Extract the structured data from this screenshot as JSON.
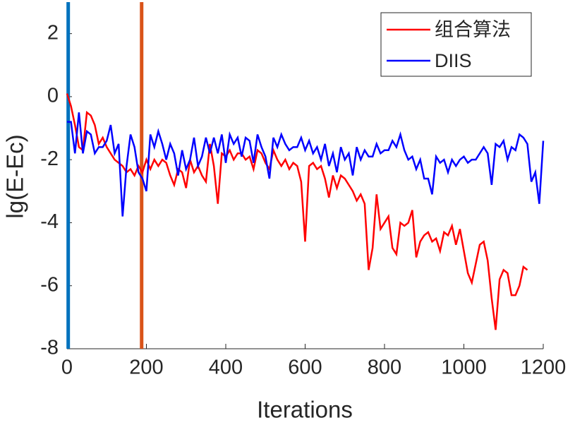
{
  "chart_data": {
    "type": "line",
    "xlabel": "Iterations",
    "ylabel": "lg(E-Ec)",
    "xlim": [
      0,
      1200
    ],
    "ylim": [
      -8,
      3
    ],
    "xticks": [
      0,
      200,
      400,
      600,
      800,
      1000,
      1200
    ],
    "yticks": [
      -8,
      -6,
      -4,
      -2,
      0,
      2
    ],
    "legend": "upper right",
    "reference_lines": [
      {
        "x": 3,
        "color": "#0072bd"
      },
      {
        "x": 188,
        "color": "#d95319"
      }
    ],
    "series": [
      {
        "name": "组合算法",
        "color": "#ff0000",
        "x": [
          0,
          10,
          20,
          30,
          40,
          50,
          60,
          70,
          80,
          90,
          100,
          110,
          120,
          130,
          140,
          150,
          160,
          170,
          180,
          190,
          200,
          210,
          220,
          230,
          240,
          250,
          260,
          270,
          280,
          290,
          300,
          310,
          320,
          330,
          340,
          350,
          360,
          370,
          380,
          390,
          400,
          410,
          420,
          430,
          440,
          450,
          460,
          470,
          480,
          490,
          500,
          510,
          520,
          530,
          540,
          550,
          560,
          570,
          580,
          590,
          600,
          610,
          620,
          630,
          640,
          650,
          660,
          670,
          680,
          690,
          700,
          710,
          720,
          730,
          740,
          750,
          760,
          770,
          780,
          790,
          800,
          810,
          820,
          830,
          840,
          850,
          860,
          870,
          880,
          890,
          900,
          910,
          920,
          930,
          940,
          950,
          960,
          970,
          980,
          990,
          1000,
          1010,
          1020,
          1030,
          1040,
          1050,
          1060,
          1070,
          1080,
          1090,
          1100,
          1110,
          1120,
          1130,
          1140,
          1150,
          1160
        ],
        "values": [
          0.1,
          -0.3,
          -0.9,
          -1.6,
          -1.7,
          -0.5,
          -0.6,
          -0.9,
          -1.5,
          -1.3,
          -1.6,
          -1.8,
          -2.0,
          -2.1,
          -2.2,
          -2.4,
          -2.3,
          -2.5,
          -2.2,
          -2.4,
          -2.0,
          -2.3,
          -2.0,
          -2.2,
          -2.0,
          -2.1,
          -2.5,
          -2.8,
          -2.3,
          -2.4,
          -2.9,
          -2.0,
          -2.4,
          -2.2,
          -2.5,
          -2.7,
          -1.5,
          -2.2,
          -3.4,
          -1.8,
          -1.9,
          -1.7,
          -2.0,
          -1.8,
          -1.8,
          -2.0,
          -1.9,
          -2.3,
          -1.7,
          -1.8,
          -2.1,
          -2.3,
          -1.7,
          -2.0,
          -2.2,
          -2.0,
          -2.3,
          -2.1,
          -2.2,
          -2.7,
          -4.6,
          -2.2,
          -2.1,
          -2.3,
          -2.2,
          -2.6,
          -3.2,
          -2.5,
          -2.9,
          -2.5,
          -2.6,
          -2.8,
          -3.0,
          -3.3,
          -3.1,
          -3.4,
          -5.5,
          -4.8,
          -3.1,
          -4.2,
          -4.0,
          -3.8,
          -4.8,
          -5.0,
          -4.0,
          -4.1,
          -4.0,
          -3.6,
          -5.1,
          -4.6,
          -4.4,
          -4.3,
          -4.6,
          -4.5,
          -4.9,
          -4.3,
          -4.4,
          -4.1,
          -4.7,
          -4.2,
          -4.9,
          -5.6,
          -5.9,
          -5.3,
          -4.7,
          -4.6,
          -5.2,
          -6.4,
          -7.4,
          -5.8,
          -5.5,
          -5.6,
          -6.3,
          -6.3,
          -6.0,
          -5.4,
          -5.5
        ]
      },
      {
        "name": "DIIS",
        "color": "#0000ff",
        "x": [
          0,
          10,
          20,
          30,
          40,
          50,
          60,
          70,
          80,
          90,
          100,
          110,
          120,
          130,
          140,
          150,
          160,
          170,
          180,
          190,
          200,
          210,
          220,
          230,
          240,
          250,
          260,
          270,
          280,
          290,
          300,
          310,
          320,
          330,
          340,
          350,
          360,
          370,
          380,
          390,
          400,
          410,
          420,
          430,
          440,
          450,
          460,
          470,
          480,
          490,
          500,
          510,
          520,
          530,
          540,
          550,
          560,
          570,
          580,
          590,
          600,
          610,
          620,
          630,
          640,
          650,
          660,
          670,
          680,
          690,
          700,
          710,
          720,
          730,
          740,
          750,
          760,
          770,
          780,
          790,
          800,
          810,
          820,
          830,
          840,
          850,
          860,
          870,
          880,
          890,
          900,
          910,
          920,
          930,
          940,
          950,
          960,
          970,
          980,
          990,
          1000,
          1010,
          1020,
          1030,
          1040,
          1050,
          1060,
          1070,
          1080,
          1090,
          1100,
          1110,
          1120,
          1130,
          1140,
          1150,
          1160,
          1170,
          1180,
          1190,
          1200
        ],
        "values": [
          -0.8,
          -0.8,
          -1.8,
          -0.5,
          -1.8,
          -1.1,
          -1.2,
          -1.8,
          -1.6,
          -1.6,
          -1.4,
          -0.9,
          -1.8,
          -1.5,
          -3.8,
          -2.2,
          -1.2,
          -1.6,
          -2.4,
          -2.6,
          -3.0,
          -1.2,
          -1.6,
          -1.1,
          -1.5,
          -2.0,
          -1.5,
          -1.8,
          -2.5,
          -1.7,
          -2.3,
          -2.0,
          -1.3,
          -2.2,
          -1.9,
          -1.3,
          -1.8,
          -1.3,
          -1.8,
          -1.2,
          -2.1,
          -1.2,
          -1.5,
          -1.3,
          -1.9,
          -1.3,
          -1.4,
          -2.1,
          -1.2,
          -1.6,
          -1.9,
          -2.6,
          -1.3,
          -1.6,
          -1.2,
          -1.5,
          -1.7,
          -1.6,
          -1.6,
          -1.3,
          -1.7,
          -1.4,
          -1.8,
          -1.6,
          -2.0,
          -1.5,
          -2.2,
          -1.8,
          -2.4,
          -1.6,
          -2.0,
          -1.8,
          -2.5,
          -1.6,
          -2.0,
          -1.7,
          -1.9,
          -1.9,
          -1.5,
          -1.8,
          -1.7,
          -1.7,
          -1.4,
          -1.6,
          -1.2,
          -1.7,
          -2.0,
          -1.9,
          -2.3,
          -2.0,
          -2.6,
          -2.6,
          -3.1,
          -1.9,
          -2.1,
          -2.0,
          -2.4,
          -2.0,
          -2.2,
          -2.0,
          -1.9,
          -2.1,
          -2.0,
          -2.0,
          -1.8,
          -1.6,
          -1.8,
          -2.8,
          -1.5,
          -1.6,
          -1.4,
          -2.0,
          -1.6,
          -1.7,
          -1.2,
          -1.3,
          -1.5,
          -2.7,
          -2.4,
          -3.4,
          -1.4
        ]
      }
    ]
  }
}
